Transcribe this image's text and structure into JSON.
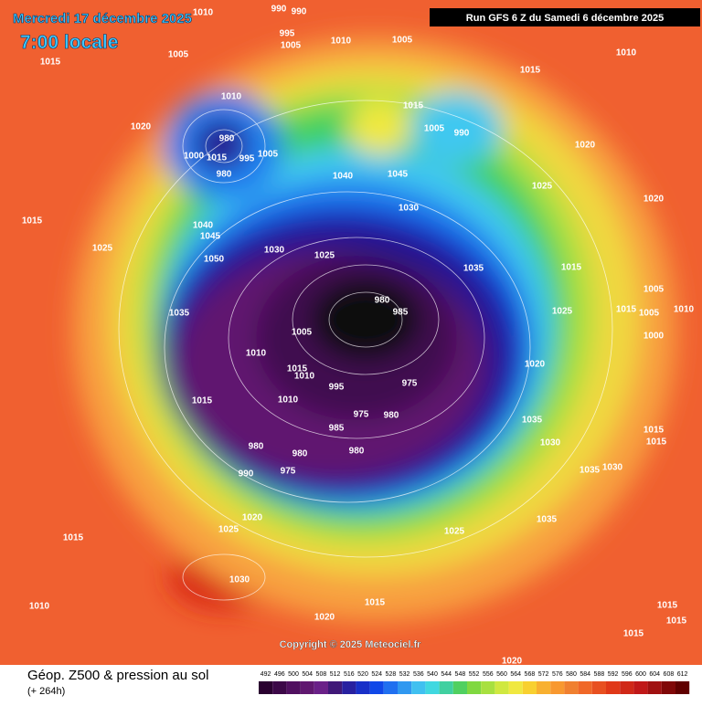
{
  "header": {
    "date": "Mercredi 17 décembre 2025",
    "time": "7:00 locale",
    "run": "Run GFS 6 Z du Samedi 6 décembre 2025"
  },
  "copyright": "Copyright © 2025 Meteociel.fr",
  "footer": {
    "title": "Géop. Z500 & pression au sol",
    "lead": "(+ 264h)"
  },
  "colorbar": {
    "ticks": [
      492,
      496,
      500,
      504,
      508,
      512,
      516,
      520,
      524,
      528,
      532,
      536,
      540,
      544,
      548,
      552,
      556,
      560,
      564,
      568,
      572,
      576,
      580,
      584,
      588,
      592,
      596,
      600,
      604,
      608,
      612
    ],
    "colors": [
      "#2a0030",
      "#3c0848",
      "#501060",
      "#601870",
      "#6a2088",
      "#401878",
      "#2820a0",
      "#1830c8",
      "#1048e8",
      "#2070f0",
      "#3098f0",
      "#40c0f0",
      "#40d8e0",
      "#40d0a0",
      "#50d060",
      "#80d840",
      "#a8e040",
      "#d0e840",
      "#f0e840",
      "#f8d030",
      "#f8b030",
      "#f89830",
      "#f08030",
      "#f06828",
      "#e85020",
      "#e03818",
      "#d02818",
      "#c01818",
      "#a01010",
      "#800808",
      "#600000"
    ]
  },
  "isobar_labels": [
    "1010",
    "990",
    "990",
    "995",
    "1005",
    "1010",
    "1005",
    "1010",
    "1015",
    "1005",
    "1015",
    "1010",
    "1015",
    "1020",
    "980",
    "1000",
    "1015",
    "995",
    "1005",
    "980",
    "1005",
    "990",
    "1020",
    "1040",
    "1045",
    "1025",
    "1020",
    "1030",
    "1040",
    "1045",
    "1015",
    "1025",
    "1030",
    "1025",
    "1035",
    "1050",
    "1015",
    "1035",
    "980",
    "985",
    "1005",
    "1010",
    "1005",
    "1015",
    "1005",
    "1010",
    "1025",
    "1000",
    "1020",
    "1015",
    "1010",
    "1010",
    "995",
    "975",
    "975",
    "980",
    "1015",
    "985",
    "1035",
    "1015",
    "1015",
    "980",
    "980",
    "980",
    "1030",
    "975",
    "1035",
    "1030",
    "990",
    "1020",
    "1025",
    "1035",
    "1025",
    "1015",
    "1030",
    "1010",
    "1015",
    "1020",
    "1015",
    "1015",
    "1015",
    "1020"
  ]
}
